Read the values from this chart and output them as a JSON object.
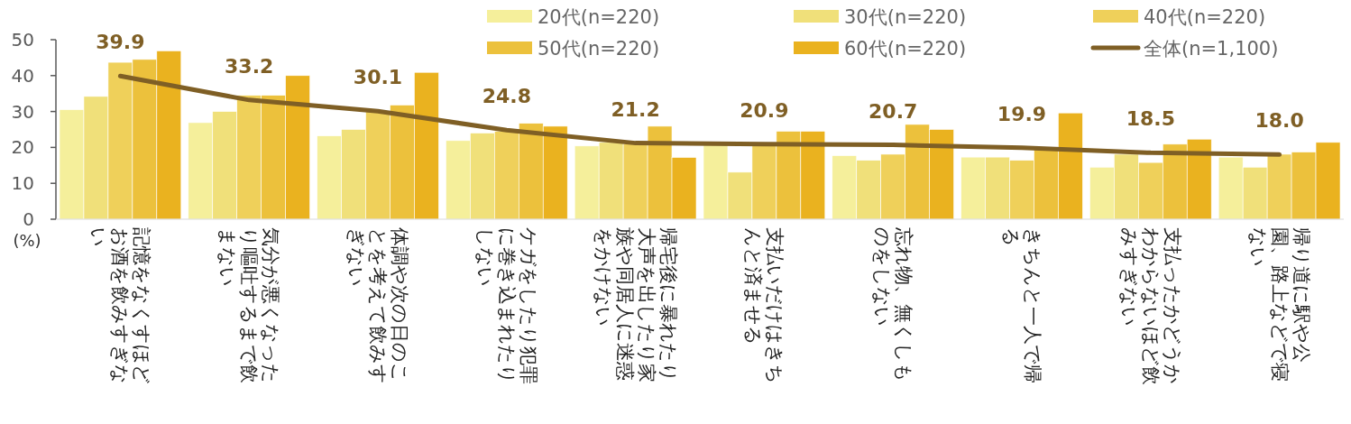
{
  "chart_data": {
    "type": "bar",
    "ylabel": "(%)",
    "categories": [
      "記憶をなくすほどお酒を飲みすぎない",
      "気分が悪くなったり嘔吐するまで飲まない",
      "体調や次の日のことを考えて飲みすぎない",
      "ケガをしたり犯罪に巻き込まれたりしない",
      "帰宅後に暴れたり大声を出したり家族や同居人に迷惑をかけない",
      "支払いだけはきちんと済ませる",
      "忘れ物、無くしものをしない",
      "きちんと一人で帰る",
      "支払ったかどうかわからないほど飲みすぎない",
      "帰り道に駅や公園、路上などで寝ない"
    ],
    "series": [
      {
        "name": "20代(n=220)",
        "color": "#f5ef9b",
        "values": [
          30.5,
          26.9,
          23.2,
          21.9,
          20.4,
          21.0,
          17.7,
          17.3,
          14.5,
          17.3
        ]
      },
      {
        "name": "30代(n=220)",
        "color": "#f0e07a",
        "values": [
          34.2,
          30.0,
          25.0,
          24.0,
          21.4,
          13.1,
          16.4,
          17.3,
          18.1,
          14.5
        ]
      },
      {
        "name": "40代(n=220)",
        "color": "#efd05a",
        "values": [
          43.7,
          34.5,
          30.0,
          24.5,
          21.0,
          21.0,
          18.1,
          16.4,
          15.8,
          18.1
        ]
      },
      {
        "name": "50代(n=220)",
        "color": "#ecc13c",
        "values": [
          44.5,
          34.5,
          31.8,
          26.7,
          25.9,
          24.5,
          26.4,
          19.5,
          20.9,
          18.7
        ]
      },
      {
        "name": "60代(n=220)",
        "color": "#eab21f",
        "values": [
          46.9,
          40.0,
          40.9,
          25.9,
          17.2,
          24.5,
          25.0,
          29.6,
          22.3,
          21.4
        ]
      },
      {
        "name": "全体(n=1,100)",
        "type": "line",
        "color": "#7f5f25",
        "values": [
          39.9,
          33.2,
          30.1,
          24.8,
          21.2,
          20.9,
          20.7,
          19.9,
          18.5,
          18.0
        ],
        "value_labels": [
          "39.9",
          "33.2",
          "30.1",
          "24.8",
          "21.2",
          "20.9",
          "20.7",
          "19.9",
          "18.5",
          "18.0"
        ]
      }
    ],
    "ylim": [
      0,
      50
    ],
    "yticks": [
      0,
      10,
      20,
      30,
      40,
      50
    ],
    "legend": "top right",
    "grid": false
  }
}
